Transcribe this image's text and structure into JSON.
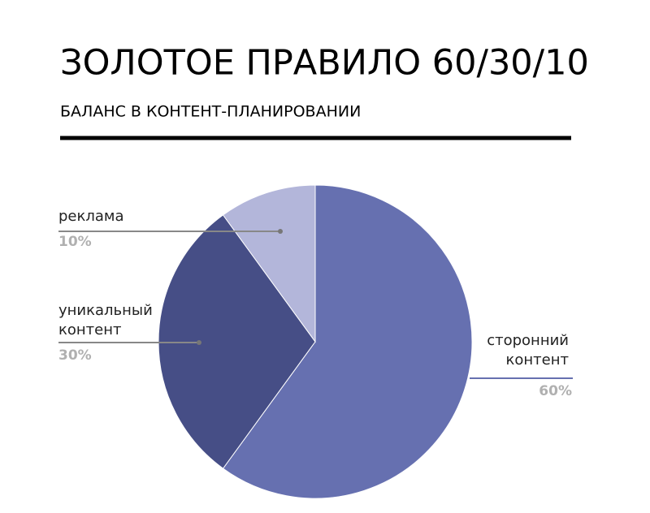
{
  "chart_data": {
    "type": "pie",
    "title": "ЗОЛОТОЕ ПРАВИЛО 60/30/10",
    "subtitle": "БАЛАНС В КОНТЕНТ-ПЛАНИРОВАНИИ",
    "categories": [
      "сторонний контент",
      "уникальный контент",
      "реклама"
    ],
    "values": [
      60,
      30,
      10
    ],
    "value_labels": [
      "60%",
      "30%",
      "10%"
    ],
    "colors": [
      "#6670b0",
      "#464e86",
      "#b3b6da"
    ]
  }
}
